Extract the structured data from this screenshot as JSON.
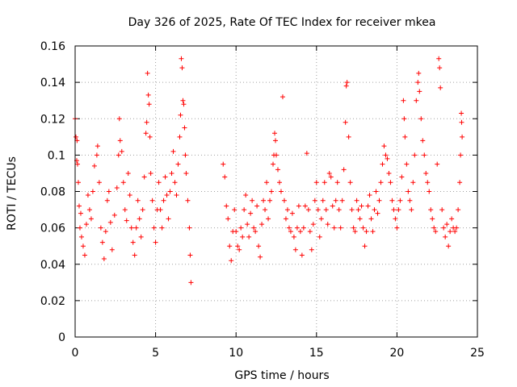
{
  "chart_data": {
    "type": "scatter",
    "title": "Day 326 of 2025, Rate Of TEC Index for receiver mkea",
    "xlabel": "GPS time / hours",
    "ylabel": "ROTI / TECUs",
    "xlim": [
      0,
      25
    ],
    "ylim": [
      0,
      0.16
    ],
    "x_ticks": [
      0,
      5,
      10,
      15,
      20,
      25
    ],
    "x_tick_labels": [
      "0",
      "5",
      "10",
      "15",
      "20",
      "25"
    ],
    "y_ticks": [
      0,
      0.02,
      0.04,
      0.06,
      0.08,
      0.1,
      0.12,
      0.14,
      0.16
    ],
    "y_tick_labels": [
      "0",
      "0.02",
      "0.04",
      "0.06",
      "0.08",
      "0.1",
      "0.12",
      "0.14",
      "0.16"
    ],
    "grid": true,
    "marker": "+",
    "marker_color": "#ff0000",
    "data_gap_hours": [
      7.2,
      9.2
    ],
    "series": [
      {
        "points": [
          [
            0.0,
            0.12
          ],
          [
            0.05,
            0.11
          ],
          [
            0.1,
            0.097
          ],
          [
            0.12,
            0.108
          ],
          [
            0.15,
            0.095
          ],
          [
            0.2,
            0.085
          ],
          [
            0.25,
            0.072
          ],
          [
            0.3,
            0.06
          ],
          [
            0.35,
            0.068
          ],
          [
            0.4,
            0.055
          ],
          [
            0.5,
            0.05
          ],
          [
            0.6,
            0.045
          ],
          [
            0.7,
            0.062
          ],
          [
            0.8,
            0.078
          ],
          [
            0.9,
            0.07
          ],
          [
            1.0,
            0.065
          ],
          [
            1.1,
            0.08
          ],
          [
            1.2,
            0.094
          ],
          [
            1.35,
            0.1
          ],
          [
            1.4,
            0.105
          ],
          [
            1.5,
            0.085
          ],
          [
            1.6,
            0.06
          ],
          [
            1.7,
            0.052
          ],
          [
            1.8,
            0.043
          ],
          [
            1.9,
            0.058
          ],
          [
            2.0,
            0.075
          ],
          [
            2.1,
            0.08
          ],
          [
            2.2,
            0.063
          ],
          [
            2.3,
            0.048
          ],
          [
            2.45,
            0.067
          ],
          [
            2.6,
            0.082
          ],
          [
            2.7,
            0.1
          ],
          [
            2.75,
            0.12
          ],
          [
            2.8,
            0.108
          ],
          [
            2.9,
            0.102
          ],
          [
            3.0,
            0.085
          ],
          [
            3.1,
            0.07
          ],
          [
            3.2,
            0.064
          ],
          [
            3.3,
            0.09
          ],
          [
            3.4,
            0.078
          ],
          [
            3.5,
            0.06
          ],
          [
            3.6,
            0.052
          ],
          [
            3.7,
            0.045
          ],
          [
            3.8,
            0.06
          ],
          [
            3.9,
            0.075
          ],
          [
            4.0,
            0.065
          ],
          [
            4.1,
            0.055
          ],
          [
            4.2,
            0.07
          ],
          [
            4.3,
            0.088
          ],
          [
            4.4,
            0.112
          ],
          [
            4.45,
            0.118
          ],
          [
            4.5,
            0.145
          ],
          [
            4.55,
            0.133
          ],
          [
            4.6,
            0.128
          ],
          [
            4.65,
            0.11
          ],
          [
            4.7,
            0.09
          ],
          [
            4.8,
            0.075
          ],
          [
            4.9,
            0.06
          ],
          [
            5.0,
            0.052
          ],
          [
            5.1,
            0.07
          ],
          [
            5.2,
            0.085
          ],
          [
            5.3,
            0.07
          ],
          [
            5.4,
            0.06
          ],
          [
            5.5,
            0.075
          ],
          [
            5.6,
            0.088
          ],
          [
            5.7,
            0.078
          ],
          [
            5.8,
            0.065
          ],
          [
            5.9,
            0.08
          ],
          [
            6.0,
            0.09
          ],
          [
            6.1,
            0.102
          ],
          [
            6.2,
            0.085
          ],
          [
            6.3,
            0.078
          ],
          [
            6.4,
            0.095
          ],
          [
            6.5,
            0.11
          ],
          [
            6.55,
            0.122
          ],
          [
            6.6,
            0.153
          ],
          [
            6.65,
            0.148
          ],
          [
            6.7,
            0.13
          ],
          [
            6.75,
            0.128
          ],
          [
            6.8,
            0.115
          ],
          [
            6.85,
            0.1
          ],
          [
            6.9,
            0.09
          ],
          [
            7.0,
            0.075
          ],
          [
            7.1,
            0.06
          ],
          [
            7.15,
            0.045
          ],
          [
            7.2,
            0.03
          ],
          [
            9.2,
            0.095
          ],
          [
            9.3,
            0.088
          ],
          [
            9.4,
            0.072
          ],
          [
            9.5,
            0.065
          ],
          [
            9.6,
            0.05
          ],
          [
            9.7,
            0.042
          ],
          [
            9.8,
            0.058
          ],
          [
            9.9,
            0.07
          ],
          [
            10.0,
            0.058
          ],
          [
            10.1,
            0.05
          ],
          [
            10.2,
            0.048
          ],
          [
            10.3,
            0.06
          ],
          [
            10.4,
            0.055
          ],
          [
            10.5,
            0.07
          ],
          [
            10.6,
            0.078
          ],
          [
            10.7,
            0.062
          ],
          [
            10.8,
            0.055
          ],
          [
            10.9,
            0.068
          ],
          [
            11.0,
            0.075
          ],
          [
            11.1,
            0.06
          ],
          [
            11.2,
            0.058
          ],
          [
            11.3,
            0.072
          ],
          [
            11.4,
            0.05
          ],
          [
            11.5,
            0.044
          ],
          [
            11.6,
            0.062
          ],
          [
            11.7,
            0.075
          ],
          [
            11.8,
            0.07
          ],
          [
            11.9,
            0.085
          ],
          [
            12.0,
            0.065
          ],
          [
            12.1,
            0.075
          ],
          [
            12.2,
            0.08
          ],
          [
            12.3,
            0.095
          ],
          [
            12.35,
            0.1
          ],
          [
            12.4,
            0.112
          ],
          [
            12.45,
            0.108
          ],
          [
            12.5,
            0.1
          ],
          [
            12.6,
            0.092
          ],
          [
            12.7,
            0.085
          ],
          [
            12.8,
            0.08
          ],
          [
            12.9,
            0.132
          ],
          [
            13.0,
            0.075
          ],
          [
            13.1,
            0.065
          ],
          [
            13.2,
            0.07
          ],
          [
            13.3,
            0.06
          ],
          [
            13.4,
            0.058
          ],
          [
            13.5,
            0.068
          ],
          [
            13.6,
            0.055
          ],
          [
            13.7,
            0.048
          ],
          [
            13.8,
            0.06
          ],
          [
            13.9,
            0.072
          ],
          [
            14.0,
            0.058
          ],
          [
            14.1,
            0.045
          ],
          [
            14.2,
            0.06
          ],
          [
            14.3,
            0.072
          ],
          [
            14.4,
            0.101
          ],
          [
            14.5,
            0.07
          ],
          [
            14.6,
            0.058
          ],
          [
            14.7,
            0.048
          ],
          [
            14.8,
            0.062
          ],
          [
            14.9,
            0.075
          ],
          [
            15.0,
            0.085
          ],
          [
            15.1,
            0.07
          ],
          [
            15.2,
            0.055
          ],
          [
            15.3,
            0.065
          ],
          [
            15.4,
            0.075
          ],
          [
            15.5,
            0.085
          ],
          [
            15.6,
            0.07
          ],
          [
            15.7,
            0.062
          ],
          [
            15.8,
            0.09
          ],
          [
            15.9,
            0.088
          ],
          [
            16.0,
            0.072
          ],
          [
            16.1,
            0.06
          ],
          [
            16.2,
            0.075
          ],
          [
            16.3,
            0.085
          ],
          [
            16.4,
            0.07
          ],
          [
            16.5,
            0.06
          ],
          [
            16.6,
            0.075
          ],
          [
            16.7,
            0.092
          ],
          [
            16.8,
            0.118
          ],
          [
            16.85,
            0.138
          ],
          [
            16.9,
            0.14
          ],
          [
            17.0,
            0.11
          ],
          [
            17.1,
            0.085
          ],
          [
            17.2,
            0.07
          ],
          [
            17.3,
            0.06
          ],
          [
            17.4,
            0.058
          ],
          [
            17.5,
            0.075
          ],
          [
            17.6,
            0.07
          ],
          [
            17.7,
            0.065
          ],
          [
            17.8,
            0.072
          ],
          [
            17.9,
            0.06
          ],
          [
            18.0,
            0.05
          ],
          [
            18.1,
            0.058
          ],
          [
            18.2,
            0.072
          ],
          [
            18.3,
            0.078
          ],
          [
            18.4,
            0.065
          ],
          [
            18.5,
            0.058
          ],
          [
            18.6,
            0.07
          ],
          [
            18.7,
            0.08
          ],
          [
            18.8,
            0.068
          ],
          [
            18.9,
            0.075
          ],
          [
            19.0,
            0.085
          ],
          [
            19.1,
            0.095
          ],
          [
            19.2,
            0.105
          ],
          [
            19.3,
            0.1
          ],
          [
            19.4,
            0.098
          ],
          [
            19.5,
            0.09
          ],
          [
            19.6,
            0.085
          ],
          [
            19.7,
            0.075
          ],
          [
            19.8,
            0.07
          ],
          [
            19.9,
            0.065
          ],
          [
            20.0,
            0.06
          ],
          [
            20.1,
            0.07
          ],
          [
            20.2,
            0.075
          ],
          [
            20.3,
            0.088
          ],
          [
            20.4,
            0.13
          ],
          [
            20.45,
            0.12
          ],
          [
            20.5,
            0.11
          ],
          [
            20.6,
            0.095
          ],
          [
            20.7,
            0.08
          ],
          [
            20.8,
            0.075
          ],
          [
            20.9,
            0.07
          ],
          [
            21.0,
            0.085
          ],
          [
            21.1,
            0.1
          ],
          [
            21.2,
            0.13
          ],
          [
            21.3,
            0.14
          ],
          [
            21.35,
            0.145
          ],
          [
            21.4,
            0.135
          ],
          [
            21.5,
            0.12
          ],
          [
            21.6,
            0.108
          ],
          [
            21.7,
            0.1
          ],
          [
            21.8,
            0.09
          ],
          [
            21.9,
            0.085
          ],
          [
            22.0,
            0.08
          ],
          [
            22.1,
            0.07
          ],
          [
            22.2,
            0.065
          ],
          [
            22.3,
            0.06
          ],
          [
            22.4,
            0.058
          ],
          [
            22.5,
            0.095
          ],
          [
            22.6,
            0.153
          ],
          [
            22.65,
            0.148
          ],
          [
            22.7,
            0.137
          ],
          [
            22.8,
            0.07
          ],
          [
            22.9,
            0.06
          ],
          [
            23.0,
            0.055
          ],
          [
            23.1,
            0.062
          ],
          [
            23.2,
            0.05
          ],
          [
            23.3,
            0.058
          ],
          [
            23.4,
            0.065
          ],
          [
            23.5,
            0.06
          ],
          [
            23.6,
            0.058
          ],
          [
            23.7,
            0.06
          ],
          [
            23.8,
            0.07
          ],
          [
            23.9,
            0.085
          ],
          [
            23.95,
            0.1
          ],
          [
            24.0,
            0.123
          ],
          [
            24.02,
            0.118
          ],
          [
            24.05,
            0.11
          ]
        ]
      }
    ]
  }
}
